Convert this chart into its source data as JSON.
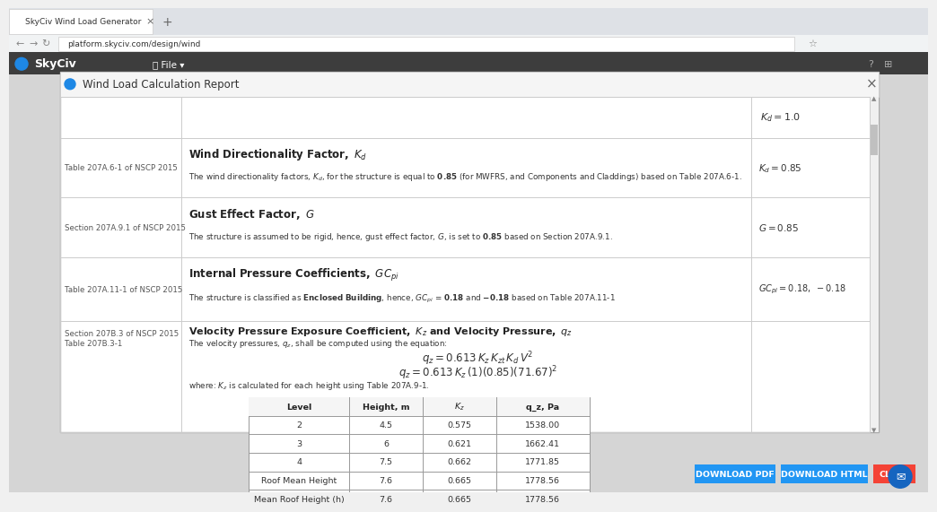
{
  "title": "Wind Load Calculation Report",
  "browser_tab": "SkyCiv Wind Load Generator",
  "url": "platform.skyciv.com/design/wind",
  "bg_color": "#f0f0f0",
  "dialog_bg": "#ffffff",
  "header_bar_color": "#3d3d3d",
  "table_headers": [
    "Level",
    "Height, m",
    "K_z",
    "q_z, Pa"
  ],
  "table_data": [
    [
      "2",
      "4.5",
      "0.575",
      "1538.00"
    ],
    [
      "3",
      "6",
      "0.621",
      "1662.41"
    ],
    [
      "4",
      "7.5",
      "0.662",
      "1771.85"
    ],
    [
      "Roof Mean Height",
      "7.6",
      "0.665",
      "1778.56"
    ],
    [
      "Mean Roof Height (h)",
      "7.6",
      "0.665",
      "1778.56"
    ]
  ],
  "buttons": [
    {
      "label": "DOWNLOAD PDF",
      "color": "#2196f3"
    },
    {
      "label": "DOWNLOAD HTML",
      "color": "#2196f3"
    },
    {
      "label": "CLOSE",
      "color": "#f44336"
    }
  ],
  "line_color": "#cccccc",
  "text_color": "#333333",
  "small_text_color": "#666666"
}
